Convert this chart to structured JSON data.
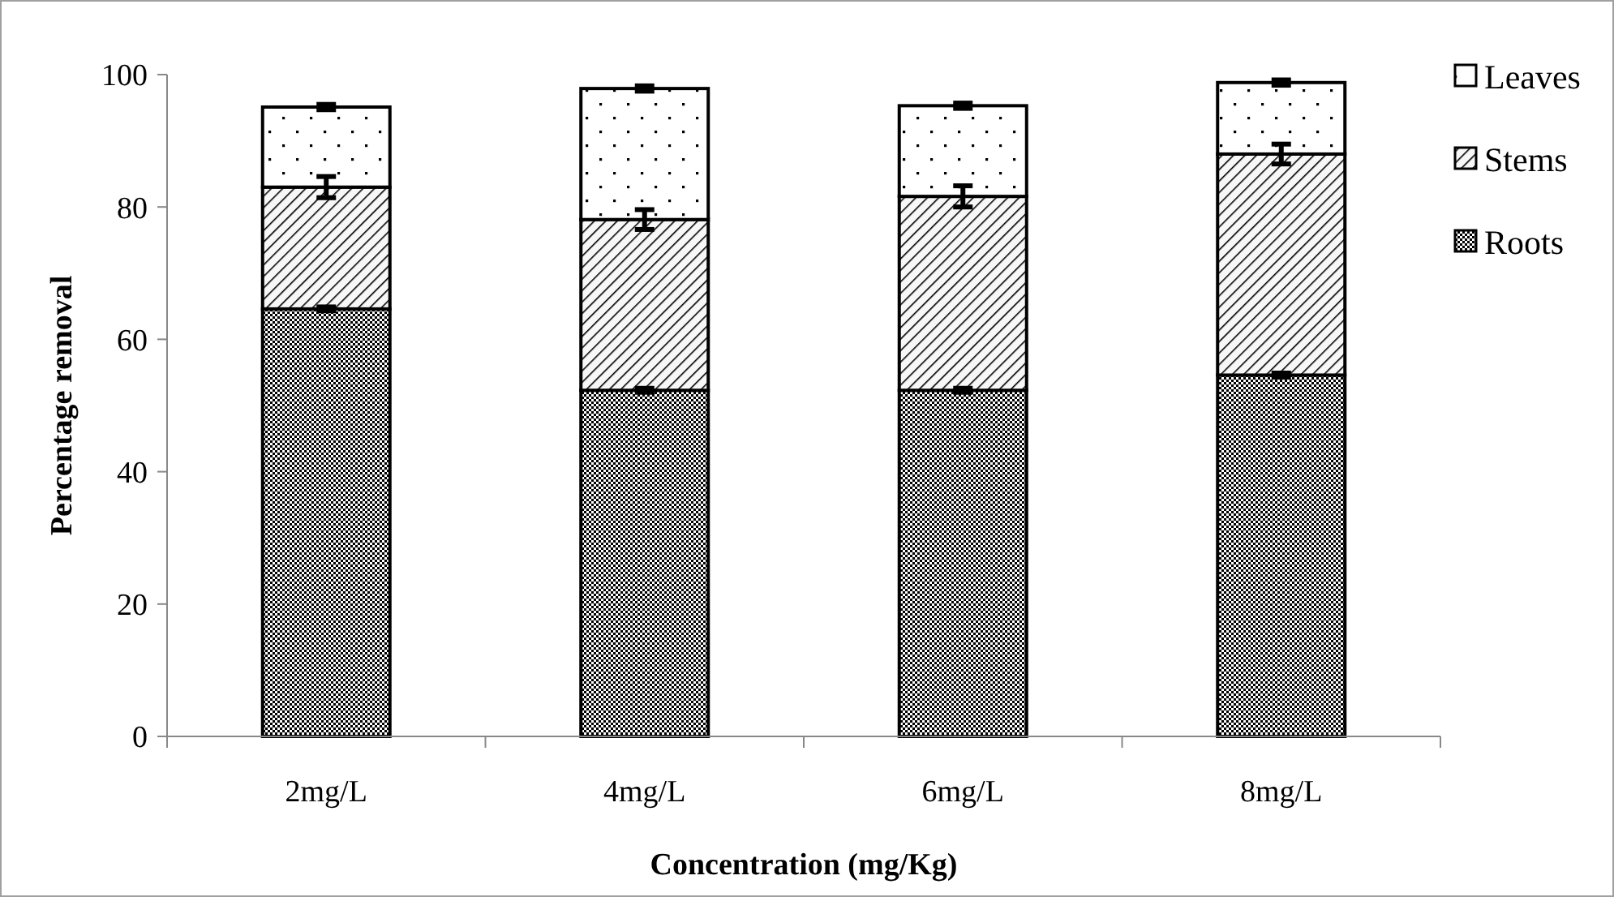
{
  "chart_data": {
    "type": "bar",
    "stacked": true,
    "xlabel": "Concentration (mg/Kg)",
    "ylabel": "Percentage removal",
    "categories": [
      "2mg/L",
      "4mg/L",
      "6mg/L",
      "8mg/L"
    ],
    "series": [
      {
        "name": "Roots",
        "values": [
          64.6,
          52.3,
          52.3,
          54.6
        ],
        "errors": [
          0.3,
          0.3,
          0.3,
          0.3
        ]
      },
      {
        "name": "Stems",
        "values": [
          18.4,
          25.8,
          29.3,
          33.4
        ],
        "errors": [
          1.6,
          1.5,
          1.6,
          1.5
        ]
      },
      {
        "name": "Leaves",
        "values": [
          12.1,
          19.8,
          13.7,
          10.8
        ],
        "errors": [
          0.4,
          0.4,
          0.4,
          0.4
        ]
      }
    ],
    "ylim": [
      0,
      100
    ],
    "yticks": [
      0,
      20,
      40,
      60,
      80,
      100
    ],
    "grid": false,
    "legend": "right"
  }
}
